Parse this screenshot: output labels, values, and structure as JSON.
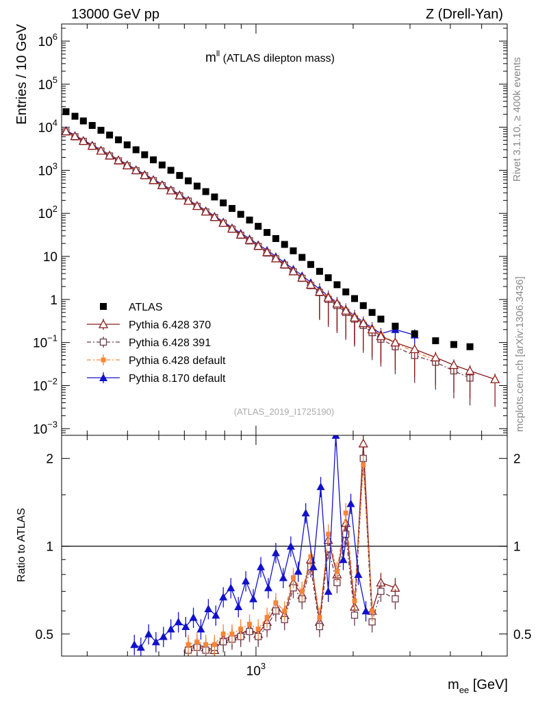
{
  "header": {
    "left": "13000 GeV pp",
    "right": "Z (Drell-Yan)"
  },
  "title_main": "m",
  "title_sup": "ll",
  "title_rest": " (ATLAS dilepton mass)",
  "watermark": "(ATLAS_2019_I1725190)",
  "side_text_top": "Rivet 3.1.10, ≥ 400k events",
  "side_text_bottom": "mcplots.cern.ch [arXiv:1306.3436]",
  "y_label_main": "Entries / 10 GeV",
  "y_label_ratio": "Ratio to ATLAS",
  "x_label_main": "m",
  "x_label_sub": "ee",
  "x_label_unit": " [GeV]",
  "colors": {
    "atlas": "#000000",
    "py370": "#8b1a1a",
    "py391": "#6b3a4a",
    "pydef": "#f5863a",
    "py8": "#1111cc"
  },
  "chart_data": [
    {
      "type": "scatter",
      "panel": "main",
      "xscale": "log",
      "yscale": "log",
      "xlim": [
        250,
        6000
      ],
      "ylim": [
        0.0007,
        2500000
      ],
      "y_ticks": [
        "10^-3",
        "10^-2",
        "10^-1",
        "1",
        "10",
        "10^2",
        "10^3",
        "10^4",
        "10^5",
        "10^6"
      ],
      "x_ticks": [
        "10^3"
      ],
      "legend_position": "lower-left",
      "series": [
        {
          "name": "ATLAS",
          "marker": "filled-square",
          "line": "none",
          "x": [
            258,
            275,
            292,
            311,
            331,
            352,
            375,
            399,
            425,
            452,
            481,
            512,
            545,
            580,
            617,
            657,
            699,
            744,
            792,
            843,
            897,
            955,
            1016,
            1082,
            1152,
            1226,
            1305,
            1389,
            1478,
            1574,
            1675,
            1783,
            1898,
            2020,
            2150,
            2289,
            2437,
            2700,
            3100,
            3600,
            4100,
            4600
          ],
          "y": [
            23000,
            18000,
            14000,
            11000,
            8500,
            6600,
            5100,
            3900,
            3000,
            2300,
            1750,
            1330,
            1000,
            760,
            570,
            430,
            320,
            240,
            175,
            130,
            95,
            70,
            50,
            36,
            26,
            19,
            13.5,
            9.5,
            6.5,
            4.5,
            3.2,
            2.2,
            1.5,
            1.05,
            0.72,
            0.5,
            0.35,
            0.24,
            0.16,
            0.11,
            0.09,
            0.08
          ]
        },
        {
          "name": "Pythia 6.428 370",
          "marker": "open-triangle",
          "line": "solid",
          "x": [
            258,
            275,
            292,
            311,
            331,
            352,
            375,
            399,
            425,
            452,
            481,
            512,
            545,
            580,
            617,
            657,
            699,
            744,
            792,
            843,
            897,
            955,
            1016,
            1082,
            1152,
            1226,
            1305,
            1389,
            1478,
            1574,
            1675,
            1783,
            1898,
            2020,
            2150,
            2289,
            2437,
            2700,
            3100,
            3600,
            4100,
            4600,
            5500
          ],
          "y": [
            8000,
            6200,
            4800,
            3700,
            2850,
            2200,
            1700,
            1300,
            1000,
            770,
            590,
            450,
            340,
            260,
            195,
            148,
            110,
            82,
            60,
            44,
            32,
            24,
            17.5,
            12.5,
            9,
            6.5,
            4.5,
            3.2,
            2.2,
            1.5,
            1.1,
            0.8,
            0.55,
            0.38,
            0.28,
            0.2,
            0.14,
            0.1,
            0.07,
            0.045,
            0.03,
            0.022,
            0.014
          ]
        },
        {
          "name": "Pythia 6.428 391",
          "marker": "open-square",
          "line": "dash-dot",
          "x": [
            258,
            275,
            292,
            311,
            331,
            352,
            375,
            399,
            425,
            452,
            481,
            512,
            545,
            580,
            617,
            657,
            699,
            744,
            792,
            843,
            897,
            955,
            1016,
            1082,
            1152,
            1226,
            1305,
            1389,
            1478,
            1574,
            1675,
            1783,
            1898,
            2020,
            2150,
            2289,
            2437,
            2700,
            3100,
            3600,
            4100,
            4600
          ],
          "y": [
            7800,
            6000,
            4700,
            3600,
            2800,
            2150,
            1650,
            1270,
            980,
            750,
            575,
            440,
            335,
            255,
            192,
            145,
            108,
            80,
            59,
            43,
            31,
            23,
            17,
            12,
            8.8,
            6.3,
            4.4,
            3.1,
            2.1,
            1.45,
            1.0,
            0.72,
            0.5,
            0.35,
            0.25,
            0.17,
            0.12,
            0.08,
            0.05,
            0.035,
            0.022,
            0.015
          ]
        },
        {
          "name": "Pythia 6.428 default",
          "marker": "filled-square-small",
          "line": "dash-dot",
          "x": [
            258,
            275,
            292,
            311,
            331,
            352,
            375,
            399,
            425,
            452,
            481,
            512,
            545,
            580,
            617,
            657,
            699,
            744,
            792,
            843,
            897,
            955,
            1016,
            1082,
            1152,
            1226,
            1305,
            1389,
            1478,
            1574,
            1675,
            1783,
            1898,
            2020,
            2150,
            2289,
            2437,
            2700,
            3100,
            3600
          ],
          "y": [
            8200,
            6300,
            4900,
            3800,
            2900,
            2250,
            1720,
            1320,
            1010,
            780,
            600,
            455,
            345,
            262,
            198,
            150,
            112,
            83,
            61,
            45,
            33,
            24.5,
            18,
            13,
            9.3,
            6.7,
            4.7,
            3.3,
            2.3,
            1.6,
            1.15,
            0.82,
            0.58,
            0.4,
            0.29,
            0.21,
            0.15,
            0.1,
            0.06,
            0.04
          ]
        },
        {
          "name": "Pythia 8.170 default",
          "marker": "filled-triangle",
          "line": "solid",
          "x": [
            258,
            275,
            292,
            311,
            331,
            352,
            375,
            399,
            425,
            452,
            481,
            512,
            545,
            580,
            617,
            657,
            699,
            744,
            792,
            843,
            897,
            955,
            1016,
            1082,
            1152,
            1226,
            1305,
            1389,
            1478,
            1574,
            1675,
            1783,
            1898,
            2020,
            2150,
            2289,
            2437,
            2700,
            3100
          ],
          "y": [
            8500,
            6500,
            5000,
            3900,
            3000,
            2300,
            1780,
            1370,
            1050,
            810,
            620,
            475,
            360,
            275,
            205,
            155,
            117,
            87,
            64,
            47,
            35,
            26,
            19,
            14,
            10,
            7.2,
            5.1,
            3.6,
            2.5,
            1.75,
            1.2,
            0.85,
            0.6,
            0.42,
            0.3,
            0.22,
            0.16,
            0.2,
            0.15
          ]
        }
      ]
    },
    {
      "type": "scatter",
      "panel": "ratio",
      "xscale": "log",
      "yscale": "log",
      "xlim": [
        250,
        6000
      ],
      "ylim": [
        0.42,
        2.4
      ],
      "y_ticks": [
        "0.5",
        "1",
        "2"
      ],
      "x_ticks": [
        "10^3"
      ],
      "reference_line": 1,
      "series": [
        {
          "name": "Pythia 6.428 370",
          "x": [
            617,
            657,
            699,
            744,
            792,
            843,
            897,
            955,
            1016,
            1082,
            1152,
            1226,
            1305,
            1389,
            1478,
            1574,
            1675,
            1783,
            1898,
            2020,
            2150,
            2289,
            2437,
            2700
          ],
          "y": [
            0.45,
            0.46,
            0.45,
            0.44,
            0.48,
            0.49,
            0.5,
            0.52,
            0.5,
            0.55,
            0.62,
            0.58,
            0.75,
            0.68,
            0.9,
            0.55,
            1.05,
            0.8,
            1.2,
            0.62,
            2.25,
            0.6,
            0.75,
            0.72
          ]
        },
        {
          "name": "Pythia 6.428 391",
          "x": [
            617,
            657,
            699,
            744,
            792,
            843,
            897,
            955,
            1016,
            1082,
            1152,
            1226,
            1305,
            1389,
            1478,
            1574,
            1675,
            1783,
            1898,
            2020,
            2150,
            2289,
            2437,
            2700
          ],
          "y": [
            0.44,
            0.45,
            0.44,
            0.45,
            0.47,
            0.48,
            0.49,
            0.51,
            0.49,
            0.53,
            0.6,
            0.56,
            0.72,
            0.66,
            0.85,
            0.53,
            0.98,
            0.75,
            1.1,
            0.58,
            2.0,
            0.55,
            0.7,
            0.66
          ]
        },
        {
          "name": "Pythia 6.428 default",
          "x": [
            617,
            657,
            699,
            744,
            792,
            843,
            897,
            955,
            1016,
            1082,
            1152,
            1226,
            1305,
            1389,
            1478,
            1574,
            1675,
            1783,
            1898,
            2020,
            2150,
            2289
          ],
          "y": [
            0.46,
            0.47,
            0.46,
            0.46,
            0.5,
            0.5,
            0.52,
            0.54,
            0.52,
            0.57,
            0.64,
            0.6,
            0.78,
            0.7,
            0.92,
            0.57,
            1.1,
            0.82,
            1.3,
            0.65,
            1.9,
            0.6
          ]
        },
        {
          "name": "Pythia 8.170 default",
          "x": [
            420,
            440,
            465,
            490,
            517,
            545,
            575,
            606,
            640,
            675,
            712,
            751,
            792,
            836,
            882,
            930,
            981,
            1035,
            1092,
            1152,
            1215,
            1282,
            1352,
            1426,
            1505,
            1587,
            1675,
            1767,
            1864,
            1967,
            2075,
            2190
          ],
          "y": [
            0.46,
            0.45,
            0.5,
            0.47,
            0.49,
            0.52,
            0.55,
            0.53,
            0.57,
            0.52,
            0.61,
            0.58,
            0.67,
            0.72,
            0.62,
            0.76,
            0.66,
            0.85,
            0.72,
            0.95,
            0.78,
            1.0,
            0.82,
            1.3,
            0.85,
            1.6,
            0.7,
            2.4,
            0.9,
            1.4,
            0.8,
            0.6
          ]
        }
      ]
    }
  ]
}
